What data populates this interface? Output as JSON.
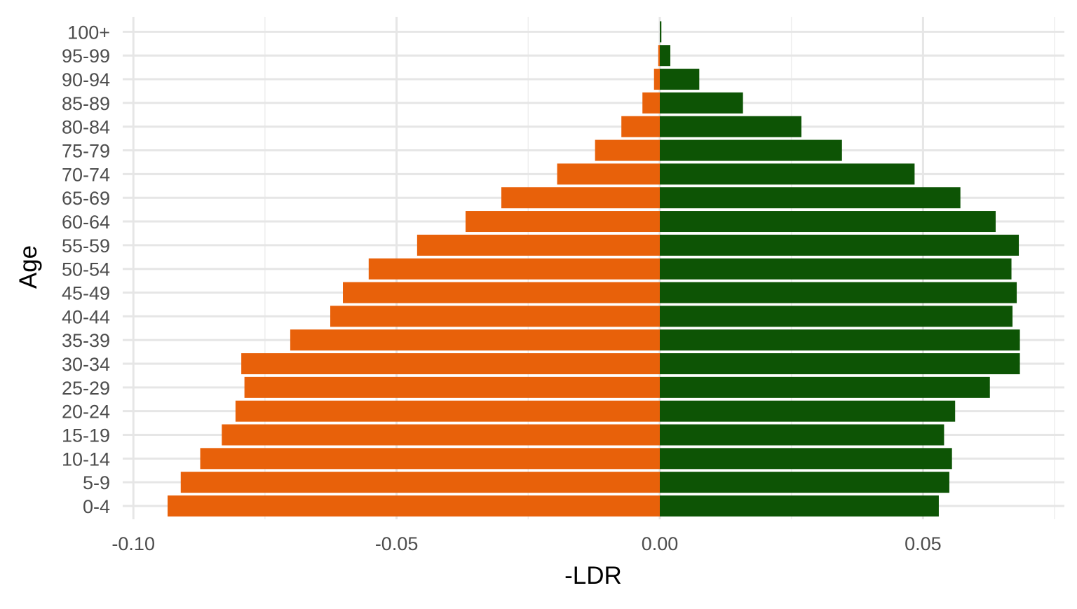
{
  "chart_data": {
    "type": "bar",
    "orientation": "horizontal",
    "xlabel": "-LDR",
    "ylabel": "Age",
    "xlim": [
      -0.1,
      0.076
    ],
    "x_ticks": [
      -0.1,
      -0.05,
      0.0,
      0.05
    ],
    "x_tick_labels": [
      "-0.10",
      "-0.05",
      "0.00",
      "0.05"
    ],
    "grid": true,
    "legend": "none",
    "categories": [
      "0-4",
      "5-9",
      "10-14",
      "15-19",
      "20-24",
      "25-29",
      "30-34",
      "35-39",
      "40-44",
      "45-49",
      "50-54",
      "55-59",
      "60-64",
      "65-69",
      "70-74",
      "75-79",
      "80-84",
      "85-89",
      "90-94",
      "95-99",
      "100+"
    ],
    "series": [
      {
        "color": "#e8610a",
        "values": [
          -0.0935,
          -0.091,
          -0.0873,
          -0.0832,
          -0.0806,
          -0.0789,
          -0.0795,
          -0.0702,
          -0.0626,
          -0.0602,
          -0.0553,
          -0.0461,
          -0.0369,
          -0.0301,
          -0.0195,
          -0.0123,
          -0.0073,
          -0.0033,
          -0.0011,
          -0.0003,
          0.0
        ]
      },
      {
        "color": "#0d5405",
        "values": [
          0.053,
          0.055,
          0.0555,
          0.054,
          0.0561,
          0.0627,
          0.0684,
          0.0684,
          0.067,
          0.0678,
          0.0668,
          0.0682,
          0.0638,
          0.0571,
          0.0484,
          0.0346,
          0.0269,
          0.0158,
          0.0075,
          0.002,
          0.0003
        ]
      }
    ]
  }
}
